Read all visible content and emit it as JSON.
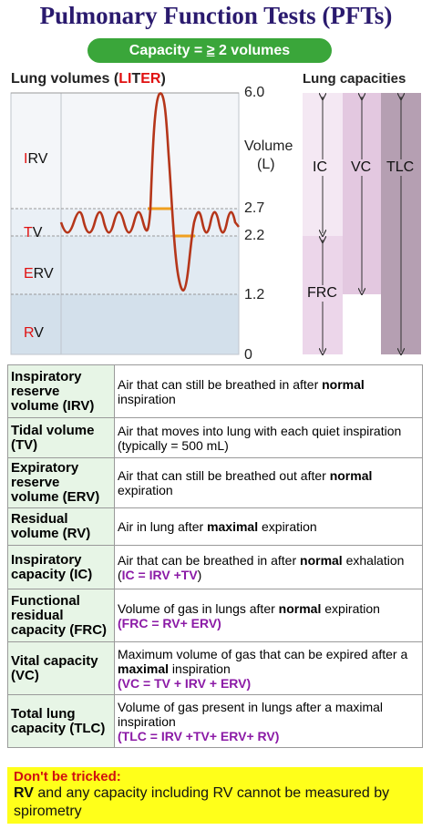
{
  "title": "Pulmonary Function Tests (PFTs)",
  "banner": {
    "prefix": "Capacity = ",
    "symbol": "≥",
    "suffix": " 2 volumes"
  },
  "volumes_panel": {
    "title_pre": "Lung volumes (",
    "title_li": "LI",
    "title_t": "T",
    "title_er": "ER",
    "title_post": ")",
    "axis_ticks": [
      "6.0",
      "2.7",
      "2.2",
      "1.2",
      "0"
    ],
    "axis_label_1": "Volume",
    "axis_label_2": "(L)",
    "regions": [
      {
        "first": "I",
        "rest": "RV"
      },
      {
        "first": "T",
        "rest": "V"
      },
      {
        "first": "E",
        "rest": "RV"
      },
      {
        "first": "R",
        "rest": "V"
      }
    ]
  },
  "capacities_panel": {
    "title": "Lung capacities",
    "labels": {
      "ic": "IC",
      "frc": "FRC",
      "vc": "VC",
      "tlc": "TLC"
    }
  },
  "table": [
    {
      "term": "Inspiratory reserve volume (IRV)",
      "d1": "Air that can still be breathed in after ",
      "bold": "normal",
      "d2": " inspiration",
      "formula": ""
    },
    {
      "term": "Tidal volume (TV)",
      "d1": "Air that moves into lung with each quiet inspiration (typically = 500 mL)",
      "bold": "",
      "d2": "",
      "formula": ""
    },
    {
      "term": "Expiratory reserve volume (ERV)",
      "d1": "Air that can still be breathed out after ",
      "bold": "normal",
      "d2": " expiration",
      "formula": ""
    },
    {
      "term": "Residual volume (RV)",
      "d1": "Air in lung after ",
      "bold": "maximal",
      "d2": " expiration",
      "formula": ""
    },
    {
      "term": "Inspiratory capacity (IC)",
      "d1": "Air that can be breathed in after ",
      "bold": "normal",
      "d2": " exhalation (",
      "formula": "IC = IRV +TV",
      "d3": ")"
    },
    {
      "term": "Functional residual capacity (FRC)",
      "d1": "Volume of gas in lungs after ",
      "bold": "normal",
      "d2": " expiration",
      "formula": "(FRC = RV+ ERV)"
    },
    {
      "term": "Vital capacity (VC)",
      "d1": "Maximum volume of gas that can be expired after a ",
      "bold": "maximal",
      "d2": " inspiration",
      "formula": "(VC = TV + IRV + ERV)"
    },
    {
      "term": "Total lung capacity (TLC)",
      "d1": "Volume of gas present in lungs after a maximal inspiration",
      "bold": "",
      "d2": "",
      "formula": "(TLC = IRV +TV+ ERV+ RV)"
    }
  ],
  "warning": {
    "heading": "Don't be tricked:",
    "lead": "RV",
    "text": " and any capacity including RV cannot be measured by spirometry"
  },
  "colors": {
    "title": "#2a1a6e",
    "banner": "#3aa63a",
    "trace": "#b5361a",
    "tidal_marker": "#f0a020",
    "table_term_bg": "#e7f5e6",
    "formula": "#8b1aa6",
    "warning_bg": "#ffff1a",
    "warning_heading": "#d01010"
  }
}
